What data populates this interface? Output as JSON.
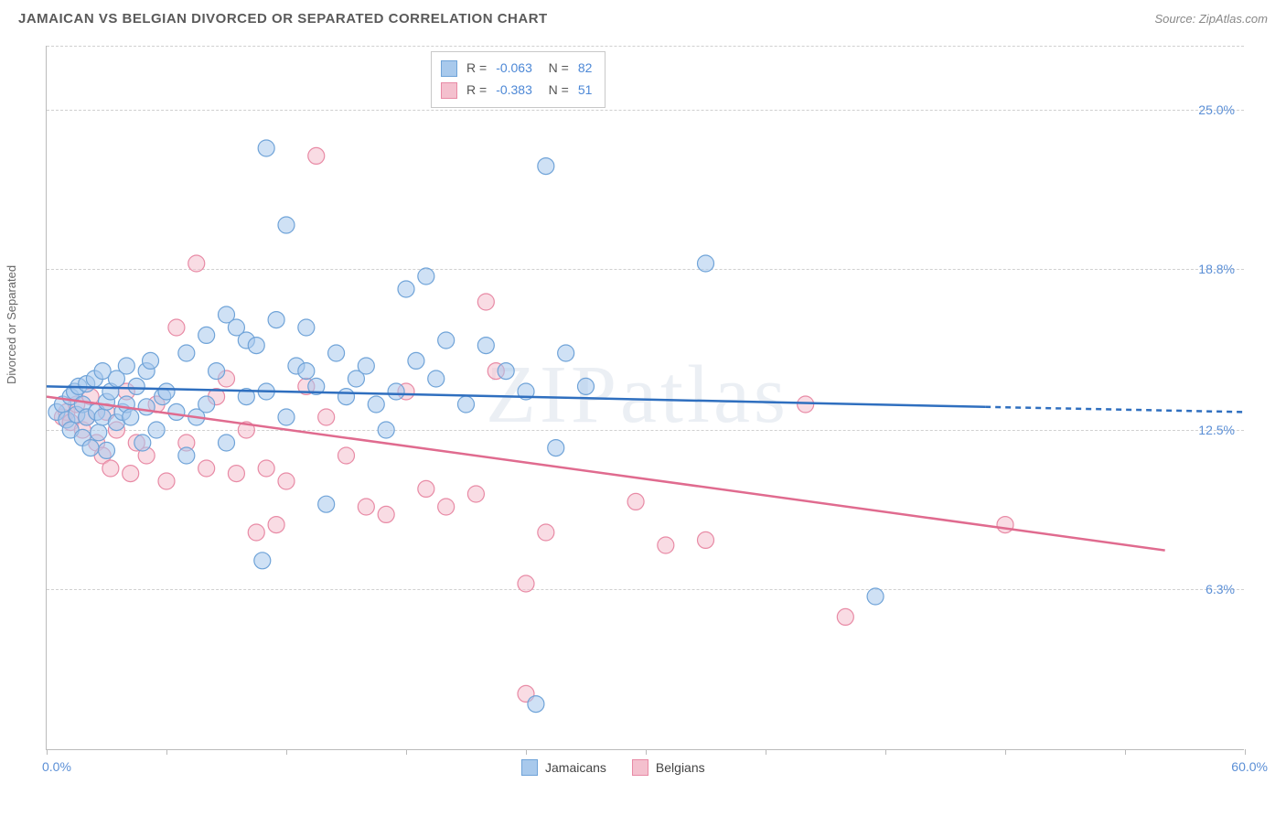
{
  "header": {
    "title": "JAMAICAN VS BELGIAN DIVORCED OR SEPARATED CORRELATION CHART",
    "source_prefix": "Source: ",
    "source": "ZipAtlas.com"
  },
  "chart": {
    "type": "scatter",
    "y_axis_label": "Divorced or Separated",
    "watermark": "ZIPatlas",
    "background_color": "#ffffff",
    "grid_color": "#d0d0d0",
    "axis_color": "#bbbbbb",
    "xlim": [
      0,
      60
    ],
    "ylim": [
      0,
      27.5
    ],
    "x_ticks": [
      0,
      6,
      12,
      18,
      24,
      30,
      36,
      42,
      48,
      54,
      60
    ],
    "y_gridlines": [
      6.3,
      12.5,
      18.8,
      25.0
    ],
    "y_tick_labels": [
      "6.3%",
      "12.5%",
      "18.8%",
      "25.0%"
    ],
    "x_min_label": "0.0%",
    "x_max_label": "60.0%",
    "label_color": "#5b8fd6",
    "label_fontsize": 14,
    "title_fontsize": 15,
    "marker_radius": 9,
    "marker_opacity": 0.55,
    "series": {
      "jamaicans": {
        "label": "Jamaicans",
        "fill": "#a8c9ec",
        "stroke": "#6fa3d8",
        "line_color": "#2f6fbf",
        "R": "-0.063",
        "N": "82",
        "trend": {
          "x1": 0,
          "y1": 14.2,
          "x2": 47,
          "y2": 13.4,
          "dash_end_x": 60,
          "dash_end_y": 13.2
        },
        "points": [
          [
            0.5,
            13.2
          ],
          [
            0.8,
            13.5
          ],
          [
            1.0,
            12.9
          ],
          [
            1.2,
            13.8
          ],
          [
            1.2,
            12.5
          ],
          [
            1.4,
            14.0
          ],
          [
            1.5,
            13.1
          ],
          [
            1.6,
            14.2
          ],
          [
            1.8,
            13.5
          ],
          [
            1.8,
            12.2
          ],
          [
            2.0,
            13.0
          ],
          [
            2.0,
            14.3
          ],
          [
            2.2,
            11.8
          ],
          [
            2.4,
            14.5
          ],
          [
            2.5,
            13.2
          ],
          [
            2.6,
            12.4
          ],
          [
            2.8,
            14.8
          ],
          [
            2.8,
            13.0
          ],
          [
            3.0,
            13.6
          ],
          [
            3.0,
            11.7
          ],
          [
            3.2,
            14.0
          ],
          [
            3.5,
            14.5
          ],
          [
            3.5,
            12.8
          ],
          [
            3.8,
            13.2
          ],
          [
            4.0,
            15.0
          ],
          [
            4.0,
            13.5
          ],
          [
            4.2,
            13.0
          ],
          [
            4.5,
            14.2
          ],
          [
            4.8,
            12.0
          ],
          [
            5.0,
            14.8
          ],
          [
            5.0,
            13.4
          ],
          [
            5.2,
            15.2
          ],
          [
            5.5,
            12.5
          ],
          [
            5.8,
            13.8
          ],
          [
            6.0,
            14.0
          ],
          [
            6.5,
            13.2
          ],
          [
            7.0,
            15.5
          ],
          [
            7.0,
            11.5
          ],
          [
            7.5,
            13.0
          ],
          [
            8.0,
            16.2
          ],
          [
            8.0,
            13.5
          ],
          [
            8.5,
            14.8
          ],
          [
            9.0,
            17.0
          ],
          [
            9.0,
            12.0
          ],
          [
            9.5,
            16.5
          ],
          [
            10.0,
            13.8
          ],
          [
            10.0,
            16.0
          ],
          [
            10.5,
            15.8
          ],
          [
            10.8,
            7.4
          ],
          [
            11.0,
            14.0
          ],
          [
            11.0,
            23.5
          ],
          [
            11.5,
            16.8
          ],
          [
            12.0,
            13.0
          ],
          [
            12.0,
            20.5
          ],
          [
            12.5,
            15.0
          ],
          [
            13.0,
            14.8
          ],
          [
            13.0,
            16.5
          ],
          [
            13.5,
            14.2
          ],
          [
            14.0,
            9.6
          ],
          [
            14.5,
            15.5
          ],
          [
            15.0,
            13.8
          ],
          [
            15.5,
            14.5
          ],
          [
            16.0,
            15.0
          ],
          [
            16.5,
            13.5
          ],
          [
            17.0,
            12.5
          ],
          [
            17.5,
            14.0
          ],
          [
            18.0,
            18.0
          ],
          [
            18.5,
            15.2
          ],
          [
            19.0,
            18.5
          ],
          [
            19.5,
            14.5
          ],
          [
            20.0,
            16.0
          ],
          [
            21.0,
            13.5
          ],
          [
            22.0,
            15.8
          ],
          [
            23.0,
            14.8
          ],
          [
            24.0,
            14.0
          ],
          [
            25.0,
            22.8
          ],
          [
            25.5,
            11.8
          ],
          [
            26.0,
            15.5
          ],
          [
            27.0,
            14.2
          ],
          [
            33.0,
            19.0
          ],
          [
            41.5,
            6.0
          ],
          [
            24.5,
            1.8
          ]
        ]
      },
      "belgians": {
        "label": "Belgians",
        "fill": "#f4c0ce",
        "stroke": "#e88aa5",
        "line_color": "#e06b8f",
        "R": "-0.383",
        "N": "51",
        "trend": {
          "x1": 0,
          "y1": 13.8,
          "x2": 56,
          "y2": 7.8
        },
        "points": [
          [
            0.8,
            13.0
          ],
          [
            1.0,
            13.2
          ],
          [
            1.2,
            12.8
          ],
          [
            1.5,
            13.5
          ],
          [
            1.8,
            12.5
          ],
          [
            2.0,
            13.0
          ],
          [
            2.2,
            13.8
          ],
          [
            2.5,
            12.0
          ],
          [
            2.8,
            11.5
          ],
          [
            3.0,
            13.2
          ],
          [
            3.2,
            11.0
          ],
          [
            3.5,
            12.5
          ],
          [
            4.0,
            14.0
          ],
          [
            4.2,
            10.8
          ],
          [
            4.5,
            12.0
          ],
          [
            5.0,
            11.5
          ],
          [
            5.5,
            13.5
          ],
          [
            6.0,
            10.5
          ],
          [
            6.5,
            16.5
          ],
          [
            7.0,
            12.0
          ],
          [
            7.5,
            19.0
          ],
          [
            8.0,
            11.0
          ],
          [
            8.5,
            13.8
          ],
          [
            9.0,
            14.5
          ],
          [
            9.5,
            10.8
          ],
          [
            10.0,
            12.5
          ],
          [
            10.5,
            8.5
          ],
          [
            11.0,
            11.0
          ],
          [
            11.5,
            8.8
          ],
          [
            12.0,
            10.5
          ],
          [
            13.0,
            14.2
          ],
          [
            13.5,
            23.2
          ],
          [
            14.0,
            13.0
          ],
          [
            15.0,
            11.5
          ],
          [
            16.0,
            9.5
          ],
          [
            17.0,
            9.2
          ],
          [
            18.0,
            14.0
          ],
          [
            19.0,
            10.2
          ],
          [
            20.0,
            9.5
          ],
          [
            21.5,
            10.0
          ],
          [
            22.0,
            17.5
          ],
          [
            22.5,
            14.8
          ],
          [
            24.0,
            6.5
          ],
          [
            25.0,
            8.5
          ],
          [
            29.5,
            9.7
          ],
          [
            31.0,
            8.0
          ],
          [
            33.0,
            8.2
          ],
          [
            38.0,
            13.5
          ],
          [
            40.0,
            5.2
          ],
          [
            48.0,
            8.8
          ],
          [
            24.0,
            2.2
          ]
        ]
      }
    }
  }
}
